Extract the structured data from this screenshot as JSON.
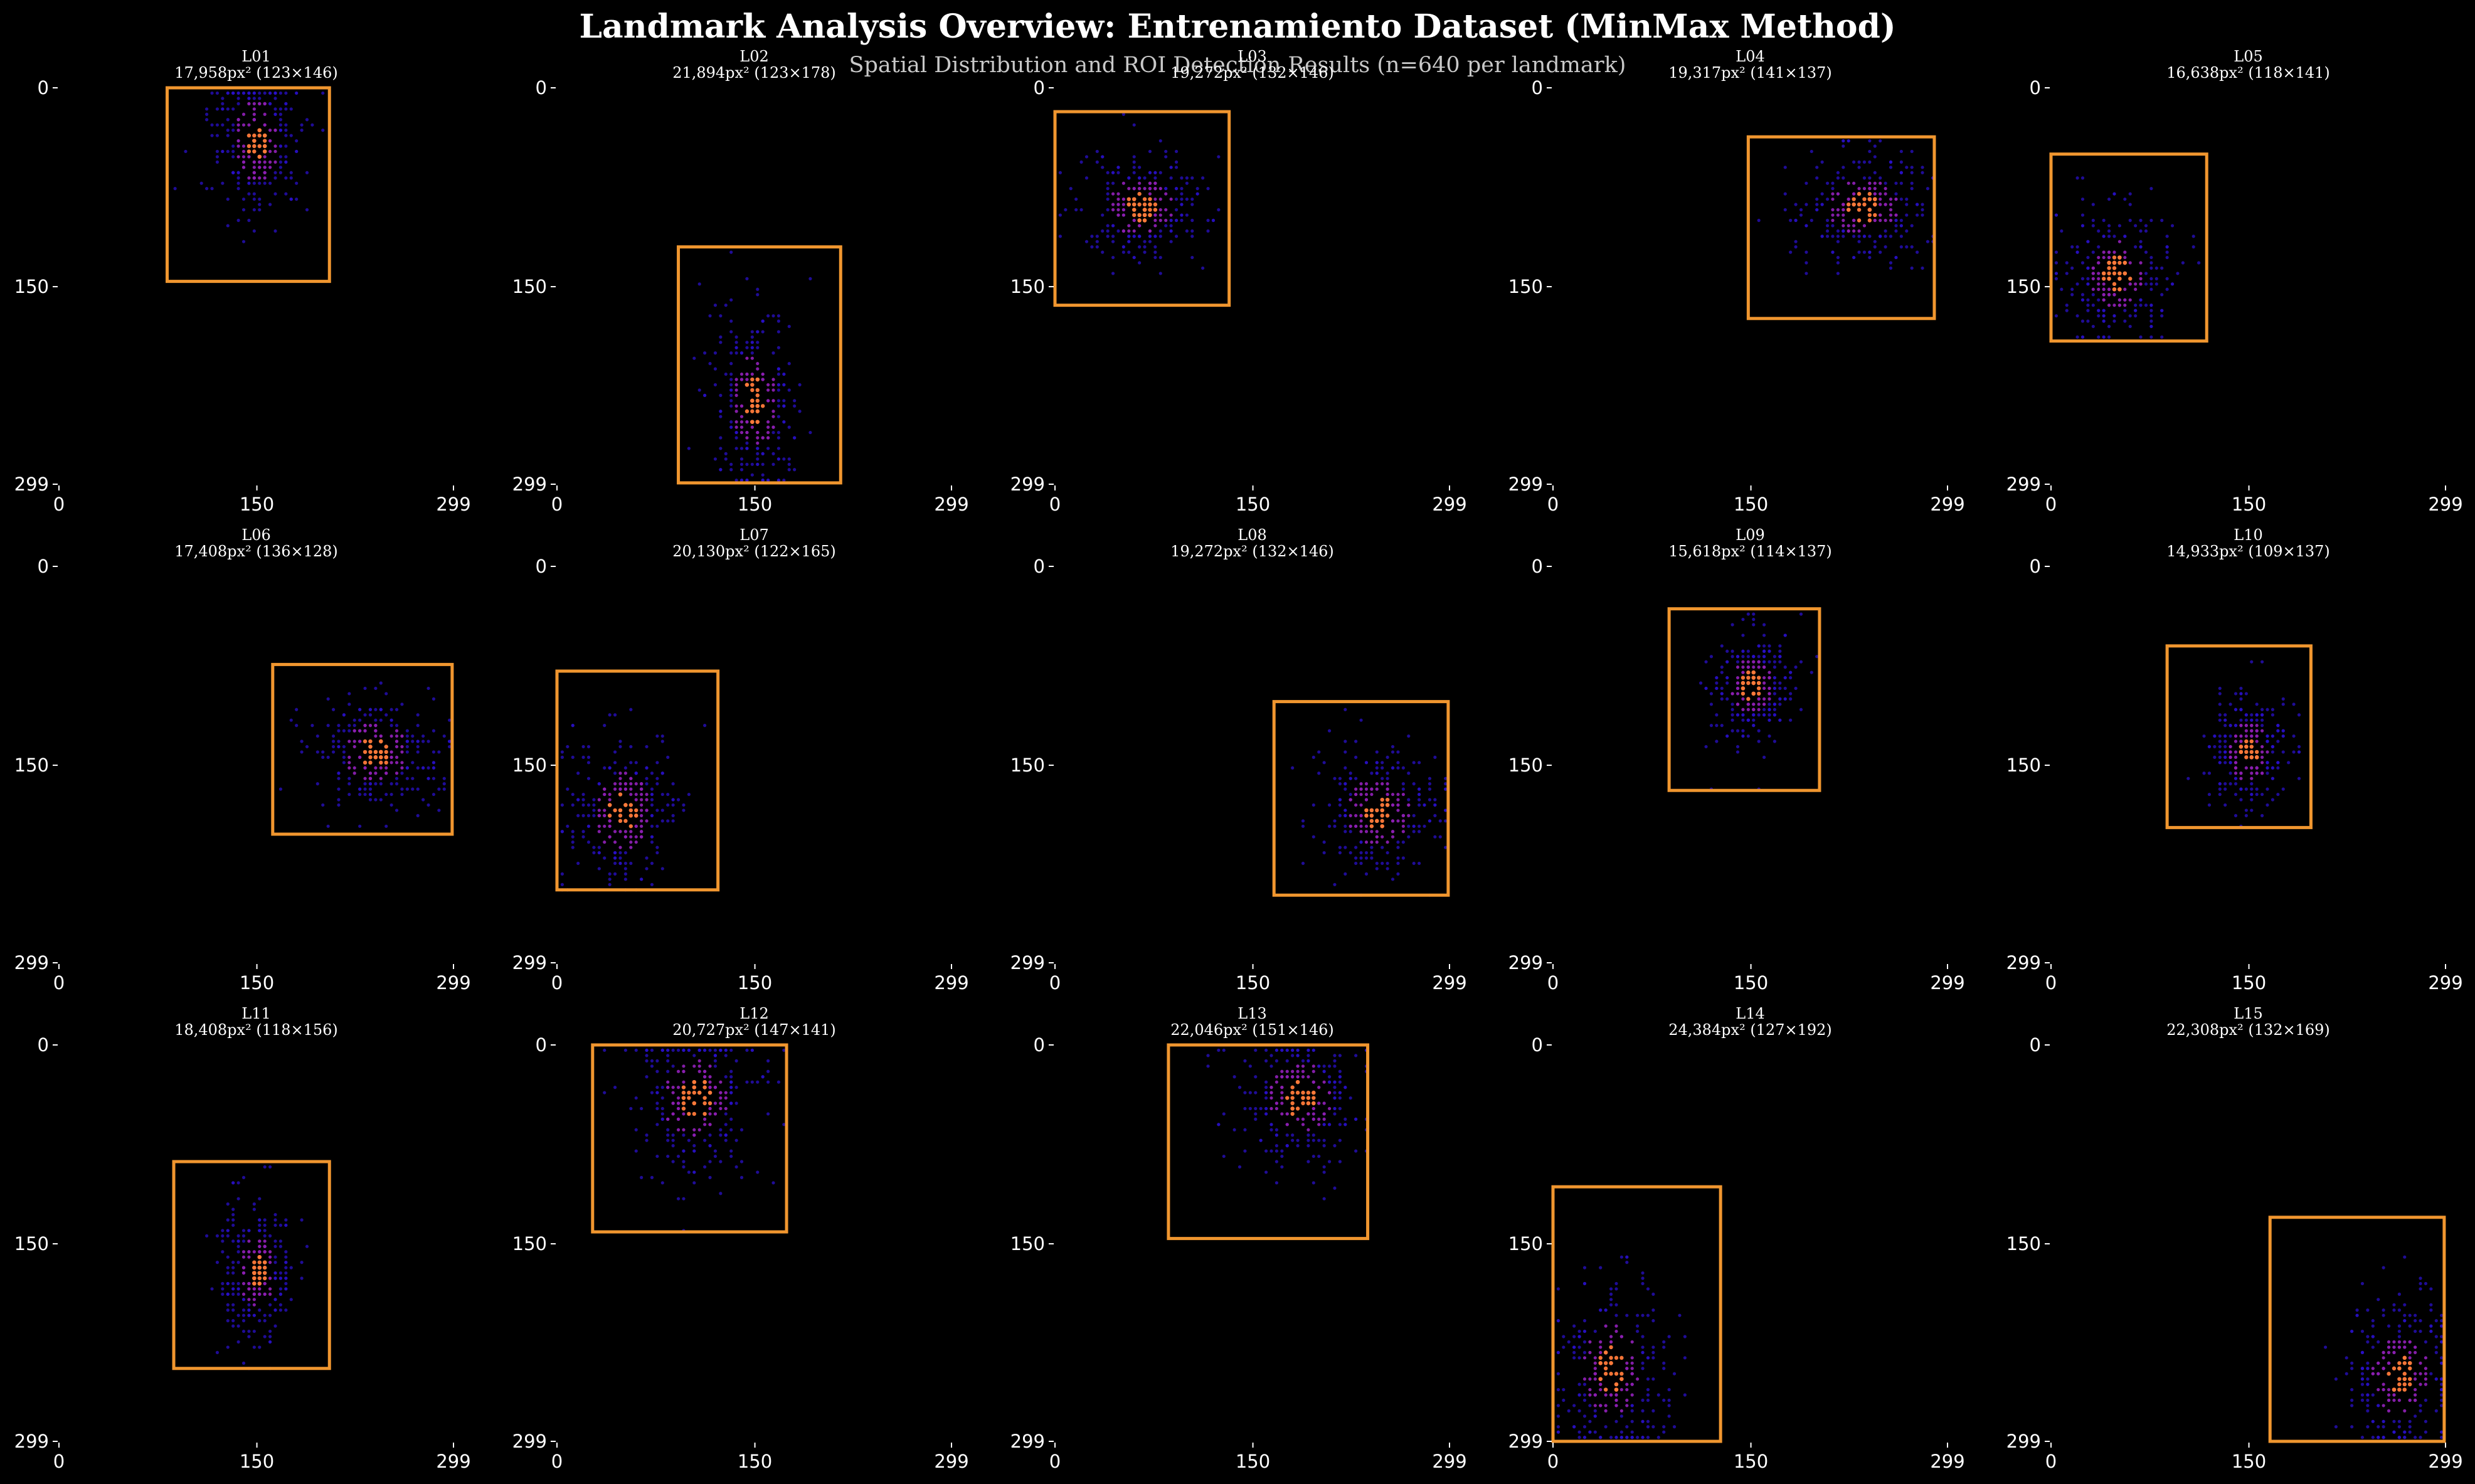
{
  "title": "Landmark Analysis Overview: Entrenamiento Dataset (MinMax Method)",
  "subtitle": "Spatial Distribution and ROI Detection Results (n=640 per landmark)",
  "colors": {
    "background": "#000000",
    "roi_box": "#f0962f",
    "point_low": "#2a10c8",
    "point_high": "#ff7a3a"
  },
  "chart_data": {
    "type": "scatter",
    "grid": false,
    "n_per_landmark": 640,
    "xlim": [
      0,
      299
    ],
    "ylim": [
      299,
      0
    ],
    "x_ticks": [
      "0",
      "150",
      "299"
    ],
    "y_ticks": [
      "0",
      "150",
      "299"
    ],
    "panels": [
      {
        "id": "L01",
        "info": "17,958px² (123×146)",
        "roi": [
          82,
          0,
          205,
          146
        ],
        "center": [
          150,
          40
        ],
        "spread": [
          18,
          30
        ]
      },
      {
        "id": "L02",
        "info": "21,894px² (123×178)",
        "roi": [
          92,
          120,
          215,
          298
        ],
        "center": [
          150,
          235
        ],
        "spread": [
          18,
          35
        ]
      },
      {
        "id": "L03",
        "info": "19,272px² (132×146)",
        "roi": [
          0,
          18,
          132,
          164
        ],
        "center": [
          65,
          90
        ],
        "spread": [
          24,
          22
        ]
      },
      {
        "id": "L04",
        "info": "19,317px² (141×137)",
        "roi": [
          148,
          37,
          289,
          174
        ],
        "center": [
          235,
          90
        ],
        "spread": [
          26,
          22
        ]
      },
      {
        "id": "L05",
        "info": "16,638px² (118×141)",
        "roi": [
          0,
          50,
          118,
          191
        ],
        "center": [
          50,
          140
        ],
        "spread": [
          22,
          25
        ]
      },
      {
        "id": "L06",
        "info": "17,408px² (136×128)",
        "roi": [
          162,
          74,
          298,
          202
        ],
        "center": [
          240,
          140
        ],
        "spread": [
          24,
          22
        ]
      },
      {
        "id": "L07",
        "info": "20,130px² (122×165)",
        "roi": [
          0,
          79,
          122,
          244
        ],
        "center": [
          50,
          185
        ],
        "spread": [
          22,
          30
        ]
      },
      {
        "id": "L08",
        "info": "19,272px² (132×146)",
        "roi": [
          166,
          102,
          298,
          248
        ],
        "center": [
          245,
          185
        ],
        "spread": [
          24,
          25
        ]
      },
      {
        "id": "L09",
        "info": "15,618px² (114×137)",
        "roi": [
          88,
          32,
          202,
          169
        ],
        "center": [
          150,
          90
        ],
        "spread": [
          16,
          22
        ]
      },
      {
        "id": "L10",
        "info": "14,933px² (109×137)",
        "roi": [
          88,
          60,
          197,
          197
        ],
        "center": [
          150,
          140
        ],
        "spread": [
          15,
          22
        ]
      },
      {
        "id": "L11",
        "info": "18,408px² (118×156)",
        "roi": [
          87,
          88,
          205,
          244
        ],
        "center": [
          150,
          170
        ],
        "spread": [
          14,
          28
        ]
      },
      {
        "id": "L12",
        "info": "20,727px² (147×141)",
        "roi": [
          27,
          0,
          174,
          141
        ],
        "center": [
          105,
          40
        ],
        "spread": [
          25,
          30
        ]
      },
      {
        "id": "L13",
        "info": "22,046px² (151×146)",
        "roi": [
          86,
          0,
          237,
          146
        ],
        "center": [
          185,
          40
        ],
        "spread": [
          25,
          28
        ]
      },
      {
        "id": "L14",
        "info": "24,384px² (127×192)",
        "roi": [
          0,
          107,
          127,
          299
        ],
        "center": [
          45,
          245
        ],
        "spread": [
          22,
          35
        ]
      },
      {
        "id": "L15",
        "info": "22,308px² (132×169)",
        "roi": [
          166,
          130,
          298,
          299
        ],
        "center": [
          265,
          250
        ],
        "spread": [
          22,
          30
        ]
      }
    ]
  }
}
